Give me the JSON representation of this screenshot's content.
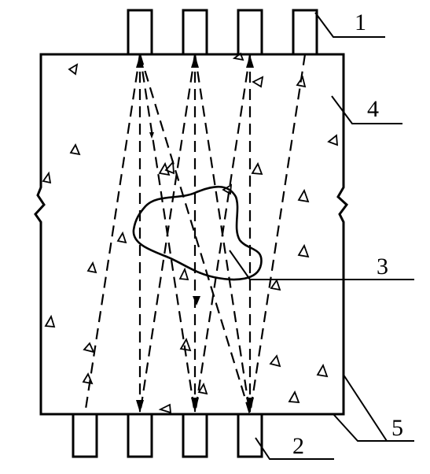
{
  "labels": {
    "transmitter_probes": "1",
    "receiver_probes": "2",
    "defect": "3",
    "concrete_member": "4",
    "member_faces": "5"
  },
  "colors": {
    "stroke": "#000000",
    "background": "#ffffff"
  }
}
